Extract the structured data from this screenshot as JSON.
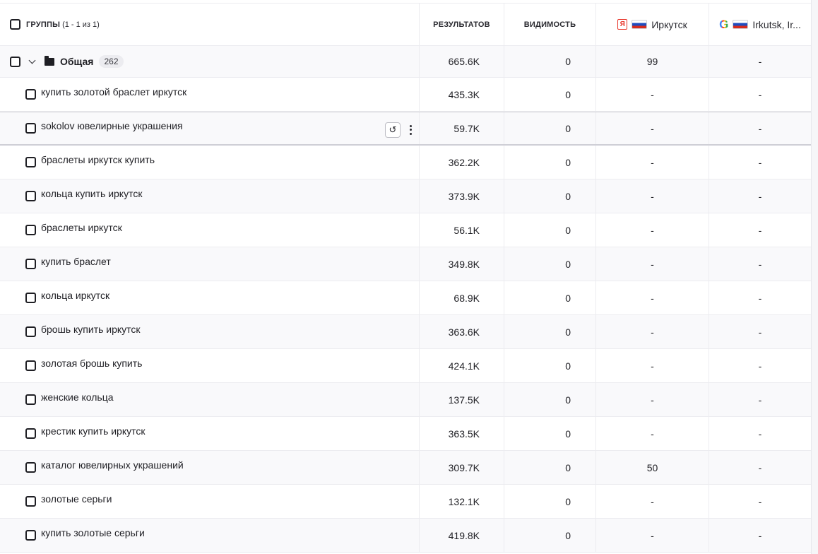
{
  "header": {
    "groups_label": "Группы",
    "groups_count": "(1 - 1 из 1)",
    "results_label": "Результатов",
    "visibility_label": "Видимость",
    "yandex_region": "Иркутск",
    "google_region": "Irkutsk, Ir...",
    "yandex_logo_letter": "Я",
    "google_logo_letter": "G"
  },
  "group": {
    "name": "Общая",
    "count": "262",
    "results": "665.6K",
    "visibility": "0",
    "yandex": "99",
    "google": "-"
  },
  "rows": [
    {
      "keyword": "купить золотой браслет иркутск",
      "results": "435.3K",
      "visibility": "0",
      "yandex": "-",
      "google": "-"
    },
    {
      "keyword": "sokolov ювелирные украшения",
      "results": "59.7K",
      "visibility": "0",
      "yandex": "-",
      "google": "-"
    },
    {
      "keyword": "браслеты иркутск купить",
      "results": "362.2K",
      "visibility": "0",
      "yandex": "-",
      "google": "-"
    },
    {
      "keyword": "кольца купить иркутск",
      "results": "373.9K",
      "visibility": "0",
      "yandex": "-",
      "google": "-"
    },
    {
      "keyword": "браслеты иркутск",
      "results": "56.1K",
      "visibility": "0",
      "yandex": "-",
      "google": "-"
    },
    {
      "keyword": "купить браслет",
      "results": "349.8K",
      "visibility": "0",
      "yandex": "-",
      "google": "-"
    },
    {
      "keyword": "кольца иркутск",
      "results": "68.9K",
      "visibility": "0",
      "yandex": "-",
      "google": "-"
    },
    {
      "keyword": "брошь купить иркутск",
      "results": "363.6K",
      "visibility": "0",
      "yandex": "-",
      "google": "-"
    },
    {
      "keyword": "золотая брошь купить",
      "results": "424.1K",
      "visibility": "0",
      "yandex": "-",
      "google": "-"
    },
    {
      "keyword": "женские кольца",
      "results": "137.5K",
      "visibility": "0",
      "yandex": "-",
      "google": "-"
    },
    {
      "keyword": "крестик купить иркутск",
      "results": "363.5K",
      "visibility": "0",
      "yandex": "-",
      "google": "-"
    },
    {
      "keyword": "каталог ювелирных украшений",
      "results": "309.7K",
      "visibility": "0",
      "yandex": "50",
      "google": "-"
    },
    {
      "keyword": "золотые серьги",
      "results": "132.1K",
      "visibility": "0",
      "yandex": "-",
      "google": "-"
    },
    {
      "keyword": "купить золотые серьги",
      "results": "419.8K",
      "visibility": "0",
      "yandex": "-",
      "google": "-"
    }
  ],
  "icons": {
    "history": "history-icon",
    "more": "more-vertical-icon",
    "folder": "folder-icon",
    "chevron": "chevron-down-icon"
  }
}
